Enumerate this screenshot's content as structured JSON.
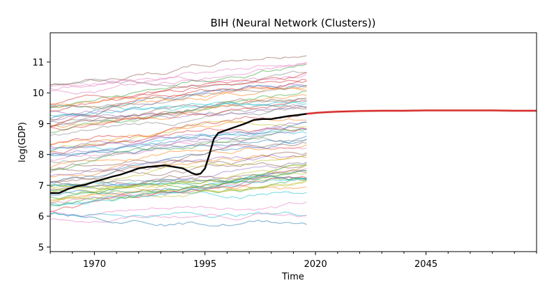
{
  "chart_data": {
    "type": "line",
    "title": "BIH (Neural Network (Clusters))",
    "xlabel": "Time",
    "ylabel": "log(GDP)",
    "xlim": [
      1960,
      2070
    ],
    "ylim": [
      4.85,
      11.95
    ],
    "x_ticks": [
      1970,
      1995,
      2020,
      2045
    ],
    "y_ticks": [
      5,
      6,
      7,
      8,
      9,
      10,
      11
    ],
    "grid": false,
    "legend": "none",
    "colors": {
      "history": "#000000",
      "forecast": "#d62728",
      "forecast_band": "#e8a09a",
      "background_palette": [
        "#1f77b4",
        "#ff7f0e",
        "#2ca02c",
        "#d62728",
        "#9467bd",
        "#8c564b",
        "#e377c2",
        "#7f7f7f",
        "#bcbd22",
        "#17becf"
      ]
    },
    "history": {
      "x": [
        1960,
        1962,
        1964,
        1966,
        1968,
        1970,
        1972,
        1974,
        1976,
        1978,
        1980,
        1982,
        1984,
        1986,
        1988,
        1990,
        1992,
        1993,
        1994,
        1995,
        1996,
        1997,
        1998,
        2000,
        2002,
        2004,
        2006,
        2008,
        2010,
        2012,
        2014,
        2016,
        2018
      ],
      "y": [
        6.75,
        6.75,
        6.88,
        6.97,
        7.02,
        7.12,
        7.2,
        7.28,
        7.35,
        7.45,
        7.55,
        7.6,
        7.62,
        7.65,
        7.6,
        7.55,
        7.4,
        7.35,
        7.38,
        7.55,
        8.0,
        8.5,
        8.7,
        8.8,
        8.9,
        9.0,
        9.12,
        9.15,
        9.15,
        9.2,
        9.25,
        9.28,
        9.32
      ]
    },
    "forecast": {
      "x": [
        2018,
        2020,
        2022,
        2025,
        2030,
        2035,
        2040,
        2045,
        2050,
        2055,
        2060,
        2065,
        2070
      ],
      "y": [
        9.32,
        9.35,
        9.37,
        9.39,
        9.41,
        9.42,
        9.42,
        9.43,
        9.43,
        9.43,
        9.43,
        9.42,
        9.42
      ],
      "band": 0.04
    },
    "background_series": {
      "count": 70,
      "x_start": 1960,
      "x_end": 2018,
      "y_start_range": [
        5.8,
        10.3
      ],
      "slope_range": [
        0.004,
        0.022
      ]
    }
  }
}
